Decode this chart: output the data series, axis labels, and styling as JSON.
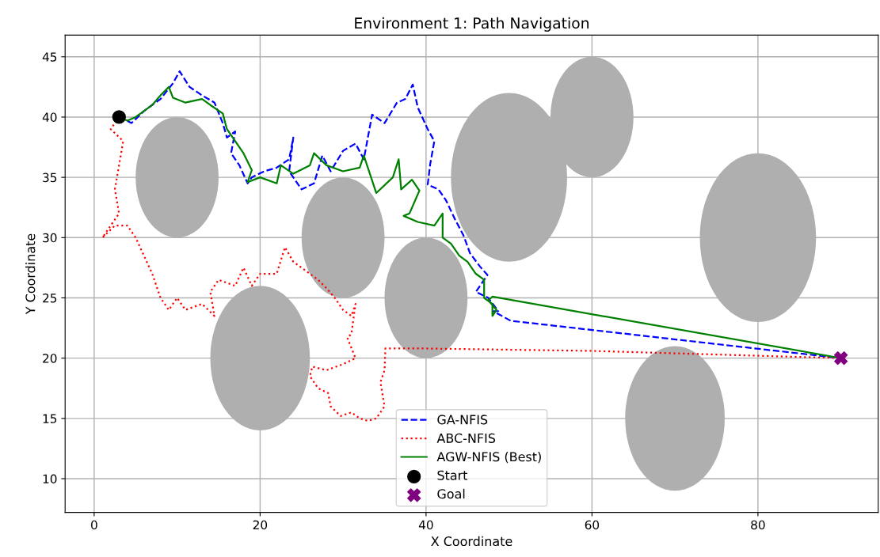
{
  "chart_data": {
    "type": "line",
    "title": "Environment 1: Path Navigation",
    "xlabel": "X Coordinate",
    "ylabel": "Y Coordinate",
    "xlim": [
      -3.5,
      94.5
    ],
    "ylim": [
      7.2,
      46.8
    ],
    "xticks": [
      0,
      20,
      40,
      60,
      80
    ],
    "yticks": [
      10,
      15,
      20,
      25,
      30,
      35,
      40,
      45
    ],
    "grid": true,
    "legend": "bottom",
    "series": [
      {
        "name": "GA-NFIS",
        "color": "#0000ff",
        "line_style": "dashed",
        "x": [
          3,
          4.5,
          6,
          8,
          9.5,
          10.3,
          11.5,
          13,
          14.5,
          15.5,
          16,
          17,
          16.5,
          17.5,
          18.5,
          19,
          20.5,
          22,
          23.5,
          24,
          23.5,
          25,
          26.5,
          27.5,
          28.5,
          30,
          31.5,
          32.5,
          33.5,
          35,
          36.5,
          37.5,
          38.4,
          39,
          40.2,
          41,
          40.5,
          40.2,
          41.5,
          42.4,
          43.5,
          44.5,
          45.3,
          46.5,
          47.4,
          46,
          47.5,
          48.7,
          48.1,
          50.2,
          90
        ],
        "values": [
          40,
          39.5,
          40.5,
          41.5,
          42.8,
          43.8,
          42.5,
          41.8,
          41.2,
          39.5,
          38.3,
          38.8,
          37,
          36,
          34.5,
          35,
          35.5,
          35.8,
          36.5,
          38.3,
          35.5,
          34,
          34.5,
          36.8,
          35.5,
          37.2,
          37.8,
          36.5,
          40.2,
          39.5,
          41.2,
          41.5,
          42.7,
          40.8,
          39,
          38,
          36.1,
          34.4,
          34,
          33.1,
          31.5,
          30.2,
          28.7,
          27.6,
          26.9,
          25.5,
          25,
          23.9,
          23.9,
          23.1,
          20
        ]
      },
      {
        "name": "ABC-NFIS",
        "color": "#ff0000",
        "line_style": "dotted",
        "x": [
          3,
          2,
          3.5,
          3,
          2.5,
          3,
          1,
          2.5,
          4,
          5,
          6,
          7,
          8,
          9,
          10,
          11,
          13,
          14.5,
          14,
          15,
          17,
          18,
          19,
          20,
          22,
          23,
          24,
          25,
          26,
          27,
          28,
          29,
          30,
          31,
          31.5,
          31,
          30.5,
          31.5,
          30,
          28,
          26.3,
          26,
          27,
          28.2,
          28.5,
          29.7,
          31,
          32,
          33,
          34,
          35,
          34.5,
          35,
          35.1,
          40,
          60,
          90
        ],
        "values": [
          40,
          39,
          38,
          36,
          34,
          32,
          30,
          31,
          31,
          30,
          28.5,
          27,
          25,
          24,
          25,
          24,
          24.5,
          23.5,
          25.5,
          26.5,
          26,
          27.5,
          26,
          27,
          27,
          29.2,
          28,
          27.5,
          27,
          26.5,
          25.8,
          25,
          24,
          23.5,
          24.5,
          22,
          21.7,
          20,
          19.5,
          19,
          19.3,
          18.5,
          17.5,
          17.1,
          16,
          15.2,
          15.5,
          15,
          14.8,
          15,
          16,
          18,
          19,
          20.8,
          20.8,
          20.6,
          20
        ]
      },
      {
        "name": "AGW-NFIS (Best)",
        "color": "#008000",
        "line_style": "solid",
        "x": [
          3,
          4,
          5,
          6,
          7,
          8,
          9,
          9.5,
          11,
          13,
          14,
          15.5,
          16,
          17,
          18,
          19,
          18.5,
          20,
          22,
          22.5,
          24,
          26,
          26.5,
          28,
          30,
          32,
          32.5,
          34,
          36,
          36.7,
          37,
          38.3,
          39.2,
          38,
          37.3,
          39,
          41,
          42,
          42,
          43,
          44,
          45,
          46,
          47,
          47,
          48,
          48,
          48.5,
          47.5,
          48,
          90
        ],
        "values": [
          40,
          39.7,
          40,
          40.5,
          41,
          41.8,
          42.5,
          41.6,
          41.2,
          41.5,
          41,
          40.3,
          39,
          38,
          37,
          35.6,
          34.6,
          35,
          34.5,
          36,
          35.3,
          36,
          37,
          36,
          35.5,
          35.8,
          36.8,
          33.7,
          35,
          36.5,
          34,
          34.8,
          33.9,
          32,
          31.8,
          31.3,
          31,
          32,
          30,
          29.5,
          28.5,
          28,
          27,
          26.5,
          25,
          24.5,
          23.5,
          24,
          24.8,
          25.1,
          20
        ]
      },
      {
        "type": "scatter",
        "name": "Start",
        "color": "#000000",
        "marker": "circle",
        "x": [
          3
        ],
        "values": [
          40
        ]
      },
      {
        "type": "scatter",
        "name": "Goal",
        "color": "#800080",
        "marker": "cross",
        "x": [
          90
        ],
        "values": [
          20
        ]
      }
    ]
  }
}
